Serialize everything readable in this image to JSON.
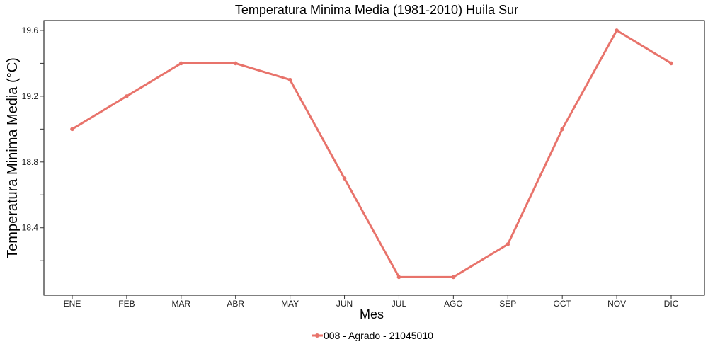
{
  "chart_data": {
    "type": "line",
    "title": "Temperatura Minima Media (1981-2010)  Huila Sur",
    "xlabel": "Mes",
    "ylabel": "Temperatura Minima Media  (°C)",
    "categories": [
      "ENE",
      "FEB",
      "MAR",
      "ABR",
      "MAY",
      "JUN",
      "JUL",
      "AGO",
      "SEP",
      "OCT",
      "NOV",
      "DIC"
    ],
    "series": [
      {
        "name": "008 - Agrado - 21045010",
        "color": "#e8736b",
        "values": [
          19.0,
          19.2,
          19.4,
          19.4,
          19.3,
          18.7,
          18.1,
          18.1,
          18.3,
          19.0,
          19.6,
          19.4
        ]
      }
    ],
    "ylim": [
      17.99,
      19.66
    ],
    "yticks": [
      18.4,
      18.8,
      19.2,
      19.6
    ],
    "yticks_minor": [
      18.2,
      18.6,
      19.0,
      19.4
    ],
    "grid": false,
    "legend_position": "bottom"
  }
}
